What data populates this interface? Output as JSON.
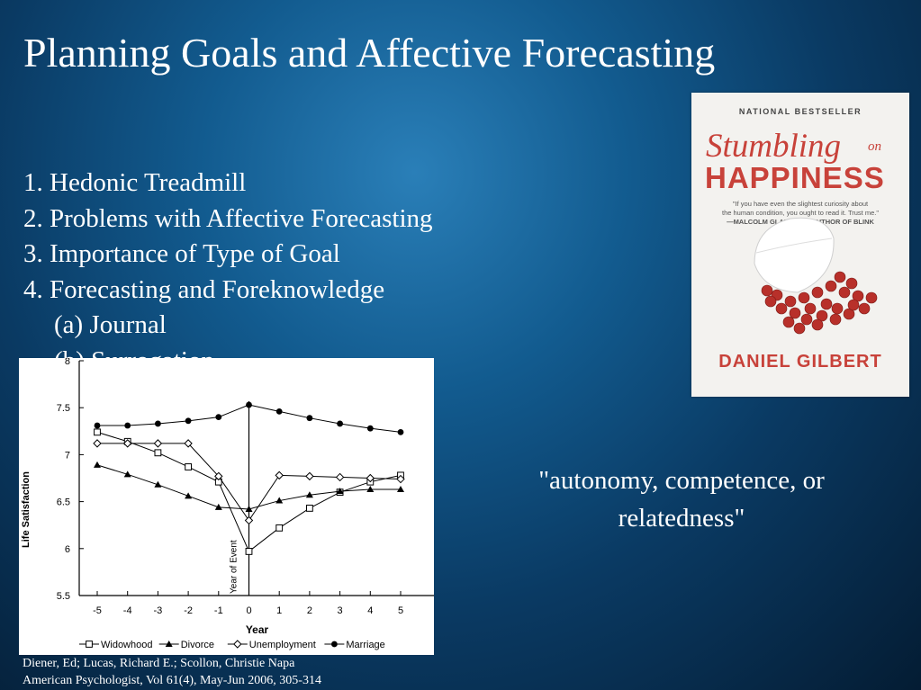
{
  "slide": {
    "title": "Planning Goals and Affective Forecasting",
    "agenda": [
      "1. Hedonic Treadmill",
      "2. Problems with Affective Forecasting",
      "3. Importance of Type of Goal",
      "4. Forecasting and Foreknowledge",
      "(a) Journal",
      "(b) Surrogation"
    ],
    "quote_line1": "\"autonomy, competence, or",
    "quote_line2": "relatedness\"",
    "citation_line1": "Diener, Ed; Lucas, Richard E.; Scollon, Christie Napa",
    "citation_line2": "American Psychologist, Vol 61(4), May-Jun 2006, 305-314"
  },
  "book": {
    "badge": "NATIONAL BESTSELLER",
    "title_part1": "Stumbling",
    "title_part2": "on",
    "title_part3": "HAPPINESS",
    "blurb_line1": "\"If you have even the slightest curiosity about",
    "blurb_line2": "the human condition, you ought to read it. Trust me.\"",
    "blurb_line3": "—MALCOLM GLADWELL, AUTHOR OF BLINK",
    "author": "DANIEL GILBERT",
    "accent_color": "#c8423a"
  },
  "chart_data": {
    "type": "line",
    "title": "",
    "xlabel": "Year",
    "ylabel": "Life Satisfaction",
    "annotation": "Year of Event",
    "x": [
      -5,
      -4,
      -3,
      -2,
      -1,
      0,
      1,
      2,
      3,
      4,
      5
    ],
    "xlim": [
      -5,
      5
    ],
    "ylim": [
      5.5,
      8
    ],
    "yticks": [
      "5.5",
      "6",
      "6.5",
      "7",
      "7.5",
      "8"
    ],
    "xticks": [
      "-5",
      "-4",
      "-3",
      "-2",
      "-1",
      "0",
      "1",
      "2",
      "3",
      "4",
      "5"
    ],
    "grid": false,
    "legend_position": "bottom",
    "series": [
      {
        "name": "Widowhood",
        "marker": "open-square",
        "values": [
          7.24,
          7.14,
          7.02,
          6.87,
          6.71,
          5.97,
          6.22,
          6.43,
          6.6,
          6.71,
          6.78
        ]
      },
      {
        "name": "Divorce",
        "marker": "filled-triangle",
        "values": [
          6.89,
          6.79,
          6.68,
          6.56,
          6.44,
          6.42,
          6.51,
          6.57,
          6.61,
          6.63,
          6.63
        ]
      },
      {
        "name": "Unemployment",
        "marker": "open-diamond",
        "values": [
          7.12,
          7.12,
          7.12,
          7.12,
          6.77,
          6.3,
          6.78,
          6.77,
          6.76,
          6.75,
          6.74
        ]
      },
      {
        "name": "Marriage",
        "marker": "filled-circle",
        "values": [
          7.31,
          7.31,
          7.33,
          7.36,
          7.4,
          7.53,
          7.46,
          7.39,
          7.33,
          7.28,
          7.24
        ]
      }
    ]
  }
}
